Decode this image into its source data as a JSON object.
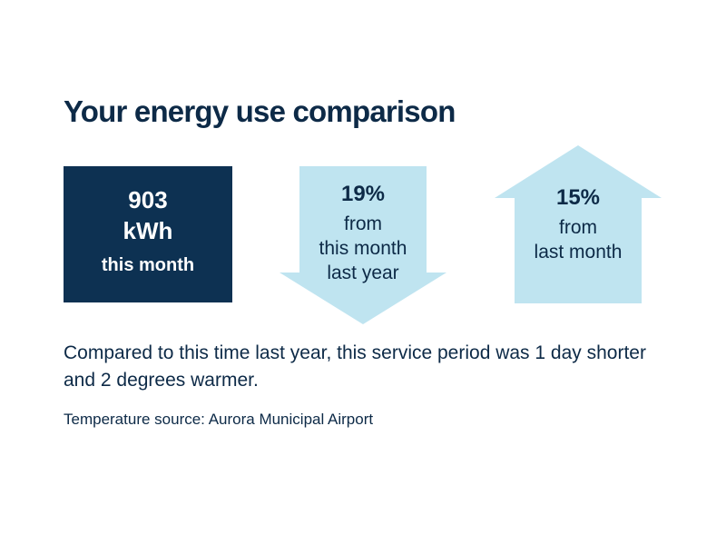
{
  "title": "Your energy use comparison",
  "usage": {
    "value": "903",
    "unit": "kWh",
    "label": "this month"
  },
  "comparisons": [
    {
      "direction": "down",
      "percent": "19%",
      "line1": "from",
      "line2": "this month",
      "line3": "last year"
    },
    {
      "direction": "up",
      "percent": "15%",
      "line1": "from",
      "line2": "last month"
    }
  ],
  "description": "Compared to this time last year, this service period was 1 day shorter and 2 degrees warmer.",
  "source": "Temperature source: Aurora Municipal Airport",
  "colors": {
    "navy": "#0d3152",
    "light_blue": "#bfe4f0",
    "text": "#0d2a47"
  }
}
